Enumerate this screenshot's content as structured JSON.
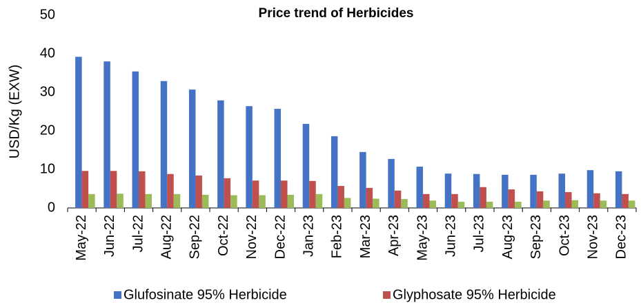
{
  "chart_data": {
    "type": "bar",
    "title": "Price trend of Herbicides",
    "y_label": "USD/Kg (EXW)",
    "categories": [
      "May-22",
      "Jun-22",
      "Jul-22",
      "Aug-22",
      "Sep-22",
      "Oct-22",
      "Nov-22",
      "Dec-22",
      "Jan-23",
      "Feb-23",
      "Mar-23",
      "Apr-23",
      "May-23",
      "Jun-23",
      "Jul-23",
      "Aug-23",
      "Sep-23",
      "Oct-23",
      "Nov-23",
      "Dec-23"
    ],
    "series": [
      {
        "name": "Glufosinate 95% Herbicide",
        "color": "#4472c4",
        "values": [
          39.2,
          38.0,
          35.4,
          32.9,
          30.7,
          27.9,
          26.4,
          25.7,
          21.8,
          18.6,
          14.5,
          12.7,
          10.7,
          8.9,
          8.8,
          8.6,
          8.6,
          8.9,
          9.8,
          9.5
        ]
      },
      {
        "name": "Glyphosate 95% Herbicide",
        "color": "#c0504d",
        "values": [
          9.6,
          9.6,
          9.5,
          8.8,
          8.4,
          7.7,
          7.1,
          7.1,
          7.0,
          5.7,
          5.2,
          4.5,
          3.6,
          3.6,
          5.4,
          4.8,
          4.3,
          4.1,
          3.8,
          3.6
        ]
      },
      {
        "color": "#9bbb59",
        "values": [
          3.6,
          3.7,
          3.6,
          3.6,
          3.4,
          3.3,
          3.3,
          3.4,
          3.6,
          2.6,
          2.4,
          2.3,
          1.9,
          1.6,
          1.6,
          1.6,
          1.9,
          2.0,
          1.9,
          1.9
        ]
      }
    ],
    "ylim": [
      0,
      50
    ],
    "yticks": [
      0,
      10,
      20,
      30,
      40,
      50
    ],
    "grid": false
  }
}
